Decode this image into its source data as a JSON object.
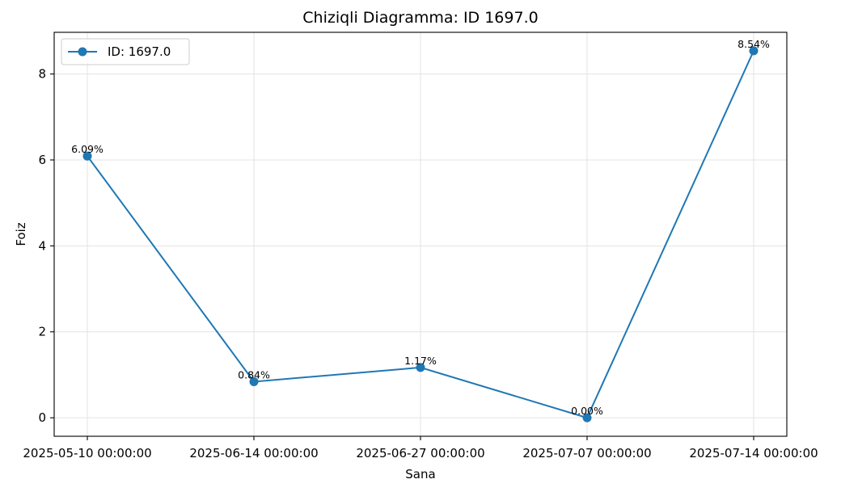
{
  "chart_data": {
    "type": "line",
    "title": "Chiziqli Diagramma: ID 1697.0",
    "xlabel": "Sana",
    "ylabel": "Foiz",
    "categories": [
      "2025-05-10 00:00:00",
      "2025-06-14 00:00:00",
      "2025-06-27 00:00:00",
      "2025-07-07 00:00:00",
      "2025-07-14 00:00:00"
    ],
    "series": [
      {
        "name": "ID: 1697.0",
        "values": [
          6.09,
          0.84,
          1.17,
          0.0,
          8.54
        ],
        "labels": [
          "6.09%",
          "0.84%",
          "1.17%",
          "0.00%",
          "8.54%"
        ],
        "color": "#1f77b4"
      }
    ],
    "ylim": [
      -0.43,
      8.97
    ],
    "yticks": [
      0,
      2,
      4,
      6,
      8
    ],
    "grid": true,
    "legend_position": "top-left"
  }
}
